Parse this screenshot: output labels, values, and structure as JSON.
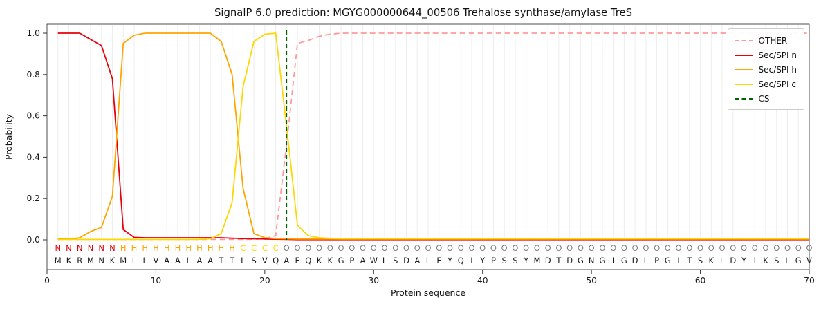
{
  "chart_data": {
    "type": "line",
    "title": "SignalP 6.0 prediction: MGYG000000644_00506 Trehalose synthase/amylase TreS",
    "xlabel": "Protein sequence",
    "ylabel": "Probability",
    "xlim": [
      0,
      70
    ],
    "ylim": [
      0,
      1.04
    ],
    "x_ticks": [
      0,
      10,
      20,
      30,
      40,
      50,
      60,
      70
    ],
    "y_ticks": [
      "0.0",
      "0.2",
      "0.4",
      "0.6",
      "0.8",
      "1.0"
    ],
    "x_range": {
      "start": 1,
      "end": 70
    },
    "grid": "faint vertical line at every residue position",
    "legend_position": "upper right",
    "series": [
      {
        "name": "OTHER",
        "color": "#ff9999",
        "style": "dashed",
        "values": [
          0.002,
          0.002,
          0.002,
          0.002,
          0.002,
          0.002,
          0.002,
          0.002,
          0.002,
          0.002,
          0.002,
          0.002,
          0.002,
          0.002,
          0.002,
          0.002,
          0.002,
          0.002,
          0.003,
          0.006,
          0.02,
          0.46,
          0.95,
          0.965,
          0.985,
          0.995,
          1.0,
          1.0,
          1.0,
          1.0,
          1.0,
          1.0,
          1.0,
          1.0,
          1.0,
          1.0,
          1.0,
          1.0,
          1.0,
          1.0,
          1.0,
          1.0,
          1.0,
          1.0,
          1.0,
          1.0,
          1.0,
          1.0,
          1.0,
          1.0,
          1.0,
          1.0,
          1.0,
          1.0,
          1.0,
          1.0,
          1.0,
          1.0,
          1.0,
          1.0,
          1.0,
          1.0,
          1.0,
          1.0,
          1.0,
          1.0,
          1.0,
          1.0,
          1.0,
          1.0
        ]
      },
      {
        "name": "Sec/SPI n",
        "color": "#e8000b",
        "style": "solid",
        "values": [
          1.0,
          1.0,
          1.0,
          0.97,
          0.94,
          0.78,
          0.05,
          0.012,
          0.01,
          0.01,
          0.01,
          0.01,
          0.01,
          0.01,
          0.01,
          0.01,
          0.008,
          0.006,
          0.005,
          0.004,
          0.003,
          0.002,
          0.001,
          0.001,
          0.001,
          0.001,
          0.001,
          0.001,
          0.001,
          0.001,
          0.001,
          0.001,
          0.001,
          0.001,
          0.001,
          0.001,
          0.001,
          0.001,
          0.001,
          0.001,
          0.001,
          0.001,
          0.001,
          0.001,
          0.001,
          0.001,
          0.001,
          0.001,
          0.001,
          0.001,
          0.001,
          0.001,
          0.001,
          0.001,
          0.001,
          0.001,
          0.001,
          0.001,
          0.001,
          0.001,
          0.001,
          0.001,
          0.001,
          0.001,
          0.001,
          0.001,
          0.001,
          0.001,
          0.001,
          0.001
        ]
      },
      {
        "name": "Sec/SPI h",
        "color": "#ffa500",
        "style": "solid",
        "values": [
          0.004,
          0.004,
          0.01,
          0.04,
          0.06,
          0.21,
          0.95,
          0.99,
          1.0,
          1.0,
          1.0,
          1.0,
          1.0,
          1.0,
          1.0,
          0.96,
          0.8,
          0.25,
          0.03,
          0.01,
          0.006,
          0.005,
          0.004,
          0.004,
          0.004,
          0.004,
          0.004,
          0.004,
          0.004,
          0.004,
          0.004,
          0.004,
          0.004,
          0.004,
          0.004,
          0.004,
          0.004,
          0.004,
          0.004,
          0.004,
          0.004,
          0.004,
          0.004,
          0.004,
          0.004,
          0.004,
          0.004,
          0.004,
          0.004,
          0.004,
          0.004,
          0.004,
          0.004,
          0.004,
          0.004,
          0.004,
          0.004,
          0.004,
          0.004,
          0.004,
          0.004,
          0.004,
          0.004,
          0.004,
          0.004,
          0.004,
          0.004,
          0.004,
          0.004,
          0.004
        ]
      },
      {
        "name": "Sec/SPI c",
        "color": "#ffd700",
        "style": "solid",
        "values": [
          0.002,
          0.002,
          0.002,
          0.002,
          0.002,
          0.002,
          0.002,
          0.002,
          0.002,
          0.002,
          0.002,
          0.002,
          0.002,
          0.003,
          0.005,
          0.03,
          0.18,
          0.74,
          0.96,
          0.995,
          1.0,
          0.55,
          0.07,
          0.02,
          0.01,
          0.007,
          0.005,
          0.005,
          0.005,
          0.005,
          0.005,
          0.005,
          0.005,
          0.005,
          0.005,
          0.005,
          0.005,
          0.005,
          0.005,
          0.005,
          0.005,
          0.005,
          0.005,
          0.005,
          0.005,
          0.005,
          0.005,
          0.005,
          0.005,
          0.005,
          0.005,
          0.005,
          0.005,
          0.005,
          0.005,
          0.005,
          0.005,
          0.005,
          0.005,
          0.005,
          0.005,
          0.005,
          0.005,
          0.005,
          0.005,
          0.005,
          0.005,
          0.005,
          0.005,
          0.005
        ]
      }
    ],
    "cs_marker": {
      "label": "CS",
      "position": 22,
      "color": "#006400",
      "style": "dashed"
    },
    "sequence": "MKRMNKMLLVAALAATTLSVQAEQKKGPAWLSDALFYQIYPSSYMDTDGNGIGDLPGITSKLDYIKSLGV",
    "region_labels": "NNNNNNHHHHHHHHHHHCCCCOOOOOOOOOOOOOOOOOOOOOOOOOOOOOOOOOOOOOOOOOOOOOOOOO",
    "region_colors": {
      "N": "#e8000b",
      "H": "#ffa500",
      "C": "#ffd700",
      "O": "#7f7f7f"
    },
    "sequence_color": "#1a1a1a",
    "legend": [
      {
        "label": "OTHER",
        "color": "#ff9999",
        "style": "dashed"
      },
      {
        "label": "Sec/SPI n",
        "color": "#e8000b",
        "style": "solid"
      },
      {
        "label": "Sec/SPI h",
        "color": "#ffa500",
        "style": "solid"
      },
      {
        "label": "Sec/SPI c",
        "color": "#ffd700",
        "style": "solid"
      },
      {
        "label": "CS",
        "color": "#006400",
        "style": "dashed"
      }
    ]
  }
}
